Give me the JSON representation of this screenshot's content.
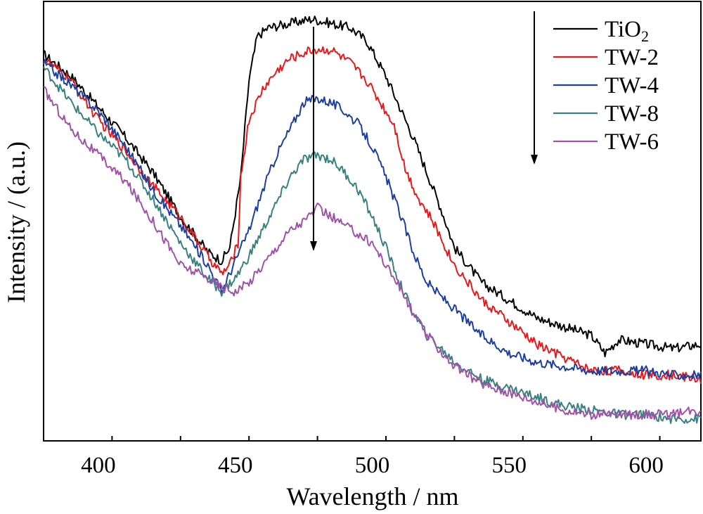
{
  "chart_data": {
    "type": "line",
    "xlabel": "Wavelength / nm",
    "ylabel": "Intensity / (a.u.)",
    "xlim": [
      380,
      620
    ],
    "ylim": [
      0,
      100
    ],
    "x_ticks": [
      400,
      450,
      500,
      550,
      600
    ],
    "y_ticks_shown": false,
    "grid": false,
    "legend_placement": "top-right",
    "annotations": [
      {
        "type": "arrow",
        "direction": "down",
        "x": 478,
        "y_from": 99,
        "y_to": 47
      },
      {
        "type": "arrow",
        "direction": "down",
        "location": "legend-left"
      }
    ],
    "series": [
      {
        "name": "TiO",
        "name_subscript": "2",
        "color": "#000000",
        "x": [
          380,
          390,
          400,
          410,
          420,
          430,
          440,
          445,
          448,
          452,
          455,
          458,
          462,
          470,
          478,
          485,
          492,
          498,
          505,
          510,
          515,
          520,
          525,
          530,
          540,
          550,
          560,
          570,
          580,
          585,
          590,
          600,
          610,
          620
        ],
        "y": [
          88,
          83,
          76,
          69,
          61,
          51,
          43,
          41,
          44,
          60,
          82,
          92,
          94,
          95,
          96,
          95,
          94,
          91,
          83,
          76,
          69,
          61,
          53,
          44,
          36,
          32,
          28,
          26,
          24,
          20,
          23,
          22,
          21,
          22
        ]
      },
      {
        "name": "TW-2",
        "color": "#e8191b",
        "x": [
          380,
          390,
          400,
          410,
          420,
          430,
          440,
          445,
          448,
          451,
          452,
          455,
          460,
          465,
          470,
          478,
          485,
          492,
          498,
          503,
          508,
          512,
          517,
          522,
          530,
          540,
          550,
          560,
          570,
          580,
          590,
          600,
          610,
          620
        ],
        "y": [
          87,
          82,
          73,
          66,
          58,
          51,
          42,
          38,
          40,
          45,
          60,
          73,
          80,
          84,
          87,
          89,
          89,
          86,
          82,
          77,
          72,
          62,
          55,
          50,
          40,
          32,
          27,
          22,
          19,
          16,
          16,
          15,
          15,
          14
        ]
      },
      {
        "name": "TW-4",
        "color": "#1c3fa0",
        "x": [
          380,
          390,
          400,
          410,
          420,
          430,
          440,
          445,
          450,
          455,
          460,
          465,
          470,
          475,
          480,
          485,
          490,
          495,
          500,
          505,
          510,
          515,
          520,
          530,
          540,
          550,
          560,
          570,
          580,
          590,
          600,
          610,
          620
        ],
        "y": [
          86,
          81,
          75,
          67,
          57,
          49,
          40,
          34,
          41,
          48,
          57,
          65,
          71,
          77,
          78,
          77,
          75,
          72,
          67,
          60,
          52,
          43,
          36,
          30,
          24,
          20,
          18,
          17,
          16,
          16,
          16,
          15,
          15
        ]
      },
      {
        "name": "TW-8",
        "color": "#3a8080",
        "x": [
          380,
          390,
          400,
          410,
          420,
          430,
          440,
          445,
          450,
          455,
          460,
          465,
          470,
          475,
          480,
          485,
          490,
          495,
          500,
          505,
          510,
          515,
          520,
          530,
          540,
          550,
          560,
          570,
          580,
          590,
          600,
          610,
          620
        ],
        "y": [
          85,
          77,
          70,
          64,
          55,
          45,
          37,
          34,
          37,
          42,
          48,
          54,
          60,
          64,
          65,
          64,
          61,
          57,
          51,
          44,
          36,
          29,
          24,
          18,
          14,
          12,
          10,
          8,
          7,
          6,
          6,
          5,
          5
        ]
      },
      {
        "name": "TW-6",
        "color": "#a052a8",
        "x": [
          380,
          390,
          400,
          410,
          420,
          430,
          440,
          445,
          450,
          455,
          460,
          465,
          470,
          475,
          480,
          485,
          490,
          495,
          500,
          505,
          510,
          515,
          520,
          530,
          540,
          550,
          560,
          570,
          580,
          590,
          600,
          610,
          620
        ],
        "y": [
          80,
          71,
          65,
          59,
          50,
          40,
          37,
          35,
          34,
          36,
          40,
          44,
          48,
          50,
          53,
          51,
          49,
          47,
          45,
          40,
          35,
          29,
          24,
          17,
          13,
          11,
          9,
          7,
          6,
          6,
          6,
          6,
          7
        ]
      }
    ]
  }
}
